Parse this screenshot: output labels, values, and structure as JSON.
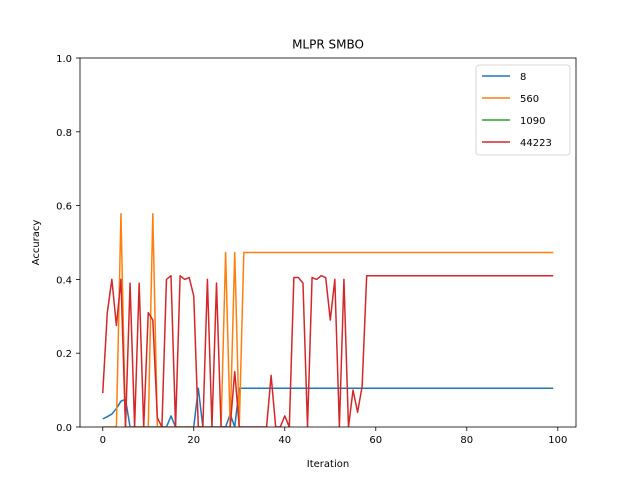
{
  "chart_data": {
    "type": "line",
    "title": "MLPR SMBO",
    "xlabel": "Iteration",
    "ylabel": "Accuracy",
    "xlim": [
      -5,
      104
    ],
    "ylim": [
      0,
      1
    ],
    "xticks": [
      0,
      20,
      40,
      60,
      80,
      100
    ],
    "yticks": [
      0.0,
      0.2,
      0.4,
      0.6,
      0.8,
      1.0
    ],
    "xtick_labels": [
      "0",
      "20",
      "40",
      "60",
      "80",
      "100"
    ],
    "ytick_labels": [
      "0.0",
      "0.2",
      "0.4",
      "0.6",
      "0.8",
      "1.0"
    ],
    "legend_position": "top-right",
    "grid": false,
    "series": [
      {
        "name": "8",
        "color": "#1f77b4",
        "x": [
          0,
          1,
          2,
          3,
          4,
          5,
          6,
          7,
          8,
          9,
          10,
          11,
          12,
          13,
          14,
          15,
          16,
          17,
          18,
          19,
          20,
          21,
          22,
          23,
          24,
          25,
          26,
          27,
          28,
          29,
          30,
          31,
          32,
          33,
          34,
          35,
          36,
          37,
          38,
          39,
          40,
          41,
          42,
          43,
          44,
          45,
          46,
          47,
          48,
          49,
          50,
          51,
          52,
          53,
          54,
          55,
          56,
          57,
          58,
          59,
          60,
          61,
          62,
          63,
          64,
          65,
          66,
          67,
          68,
          69,
          70,
          71,
          72,
          73,
          74,
          75,
          76,
          77,
          78,
          79,
          80,
          81,
          82,
          83,
          84,
          85,
          86,
          87,
          88,
          89,
          90,
          91,
          92,
          93,
          94,
          95,
          96,
          97,
          98,
          99
        ],
        "y": [
          0.022,
          0.028,
          0.035,
          0.05,
          0.07,
          0.075,
          0,
          0,
          0,
          0,
          0,
          0,
          0,
          0,
          0,
          0.03,
          0,
          0,
          0,
          0,
          0,
          0.105,
          0,
          0,
          0,
          0,
          0,
          0,
          0.035,
          0,
          0.105,
          0.105,
          0.105,
          0.105,
          0.105,
          0.105,
          0.105,
          0.105,
          0.105,
          0.105,
          0.105,
          0.105,
          0.105,
          0.105,
          0.105,
          0.105,
          0.105,
          0.105,
          0.105,
          0.105,
          0.105,
          0.105,
          0.105,
          0.105,
          0.105,
          0.105,
          0.105,
          0.105,
          0.105,
          0.105,
          0.105,
          0.105,
          0.105,
          0.105,
          0.105,
          0.105,
          0.105,
          0.105,
          0.105,
          0.105,
          0.105,
          0.105,
          0.105,
          0.105,
          0.105,
          0.105,
          0.105,
          0.105,
          0.105,
          0.105,
          0.105,
          0.105,
          0.105,
          0.105,
          0.105,
          0.105,
          0.105,
          0.105,
          0.105,
          0.105,
          0.105,
          0.105,
          0.105,
          0.105,
          0.105,
          0.105,
          0.105,
          0.105,
          0.105,
          0.105
        ]
      },
      {
        "name": "560",
        "color": "#ff7f0e",
        "x": [
          0,
          1,
          2,
          3,
          4,
          5,
          6,
          7,
          8,
          9,
          10,
          11,
          12,
          13,
          14,
          15,
          16,
          17,
          18,
          19,
          20,
          21,
          22,
          23,
          24,
          25,
          26,
          27,
          28,
          29,
          30,
          31,
          32,
          33,
          34,
          35,
          36,
          37,
          38,
          39,
          40,
          41,
          42,
          43,
          44,
          45,
          46,
          47,
          48,
          49,
          50,
          51,
          52,
          53,
          54,
          55,
          56,
          57,
          58,
          59,
          60,
          61,
          62,
          63,
          64,
          65,
          66,
          67,
          68,
          69,
          70,
          71,
          72,
          73,
          74,
          75,
          76,
          77,
          78,
          79,
          80,
          81,
          82,
          83,
          84,
          85,
          86,
          87,
          88,
          89,
          90,
          91,
          92,
          93,
          94,
          95,
          96,
          97,
          98,
          99
        ],
        "y": [
          0,
          0,
          0,
          0,
          0.578,
          0,
          0,
          0,
          0,
          0,
          0,
          0.578,
          0,
          0,
          0,
          0,
          0,
          0,
          0,
          0,
          0,
          0,
          0,
          0,
          0,
          0,
          0,
          0.473,
          0,
          0.473,
          0,
          0.473,
          0.473,
          0.473,
          0.473,
          0.473,
          0.473,
          0.473,
          0.473,
          0.473,
          0.473,
          0.473,
          0.473,
          0.473,
          0.473,
          0.473,
          0.473,
          0.473,
          0.473,
          0.473,
          0.473,
          0.473,
          0.473,
          0.473,
          0.473,
          0.473,
          0.473,
          0.473,
          0.473,
          0.473,
          0.473,
          0.473,
          0.473,
          0.473,
          0.473,
          0.473,
          0.473,
          0.473,
          0.473,
          0.473,
          0.473,
          0.473,
          0.473,
          0.473,
          0.473,
          0.473,
          0.473,
          0.473,
          0.473,
          0.473,
          0.473,
          0.473,
          0.473,
          0.473,
          0.473,
          0.473,
          0.473,
          0.473,
          0.473,
          0.473,
          0.473,
          0.473,
          0.473,
          0.473,
          0.473,
          0.473,
          0.473,
          0.473,
          0.473,
          0.473
        ]
      },
      {
        "name": "1090",
        "color": "#2ca02c",
        "x": [],
        "y": []
      },
      {
        "name": "44223",
        "color": "#d62728",
        "x": [
          0,
          1,
          2,
          3,
          4,
          5,
          6,
          7,
          8,
          9,
          10,
          11,
          12,
          13,
          14,
          15,
          16,
          17,
          18,
          19,
          20,
          21,
          22,
          23,
          24,
          25,
          26,
          27,
          28,
          29,
          30,
          31,
          32,
          33,
          34,
          35,
          36,
          37,
          38,
          39,
          40,
          41,
          42,
          43,
          44,
          45,
          46,
          47,
          48,
          49,
          50,
          51,
          52,
          53,
          54,
          55,
          56,
          57,
          58,
          59,
          60,
          61,
          62,
          63,
          64,
          65,
          66,
          67,
          68,
          69,
          70,
          71,
          72,
          73,
          74,
          75,
          76,
          77,
          78,
          79,
          80,
          81,
          82,
          83,
          84,
          85,
          86,
          87,
          88,
          89,
          90,
          91,
          92,
          93,
          94,
          95,
          96,
          97,
          98,
          99
        ],
        "y": [
          0.092,
          0.31,
          0.4,
          0.275,
          0.4,
          0,
          0.39,
          0,
          0.39,
          0,
          0.31,
          0.29,
          0.025,
          0,
          0.4,
          0.41,
          0,
          0.41,
          0.4,
          0.405,
          0.355,
          0,
          0,
          0.4,
          0,
          0.39,
          0,
          0,
          0,
          0.15,
          0,
          0,
          0,
          0,
          0,
          0,
          0,
          0.14,
          0,
          0,
          0.03,
          0,
          0.405,
          0.405,
          0.39,
          0,
          0.405,
          0.4,
          0.41,
          0.405,
          0.29,
          0.4,
          0,
          0.4,
          0,
          0.1,
          0.04,
          0.11,
          0.41,
          0.41,
          0.41,
          0.41,
          0.41,
          0.41,
          0.41,
          0.41,
          0.41,
          0.41,
          0.41,
          0.41,
          0.41,
          0.41,
          0.41,
          0.41,
          0.41,
          0.41,
          0.41,
          0.41,
          0.41,
          0.41,
          0.41,
          0.41,
          0.41,
          0.41,
          0.41,
          0.41,
          0.41,
          0.41,
          0.41,
          0.41,
          0.41,
          0.41,
          0.41,
          0.41,
          0.41,
          0.41,
          0.41,
          0.41,
          0.41,
          0.41
        ]
      }
    ]
  }
}
